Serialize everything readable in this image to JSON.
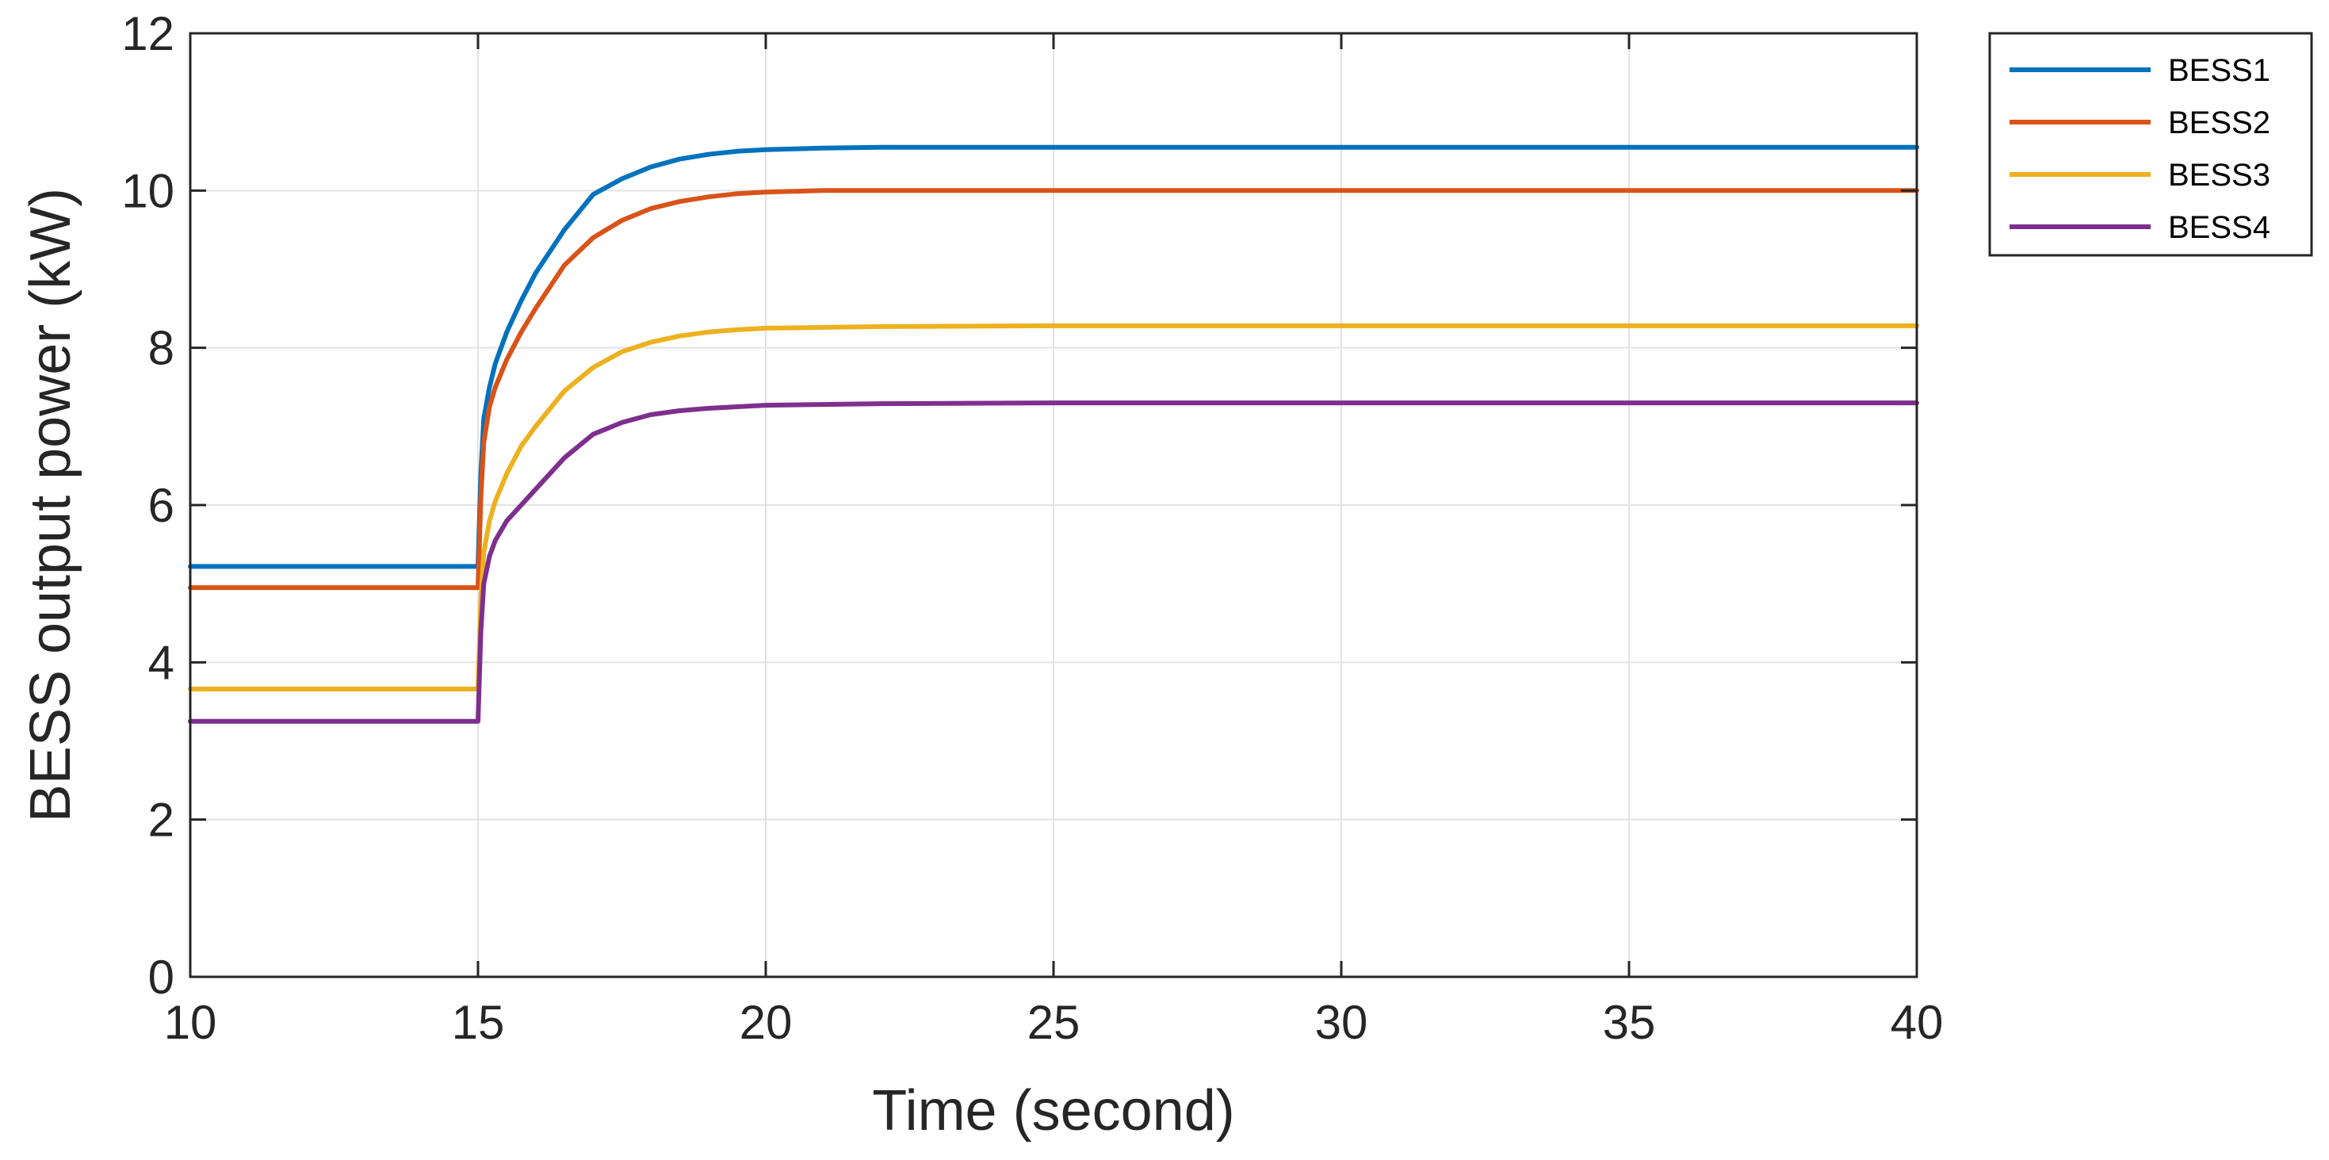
{
  "chart_data": {
    "type": "line",
    "title": "",
    "xlabel": "Time (second)",
    "ylabel": "BESS output power (kW)",
    "xlim": [
      10,
      40
    ],
    "ylim": [
      0,
      12
    ],
    "xticks": [
      10,
      15,
      20,
      25,
      30,
      35,
      40
    ],
    "yticks": [
      0,
      2,
      4,
      6,
      8,
      10,
      12
    ],
    "grid": true,
    "legend_position": "outside-top-right",
    "series": [
      {
        "name": "BESS1",
        "color": "#0072BD",
        "x": [
          10,
          14.98,
          15.0,
          15.05,
          15.1,
          15.2,
          15.3,
          15.5,
          15.75,
          16.0,
          16.5,
          17.0,
          17.5,
          18.0,
          18.5,
          19.0,
          19.5,
          20.0,
          21.0,
          22.0,
          25.0,
          30.0,
          35.0,
          40.0
        ],
        "y": [
          5.22,
          5.22,
          5.22,
          6.4,
          7.1,
          7.5,
          7.8,
          8.2,
          8.6,
          8.95,
          9.5,
          9.95,
          10.15,
          10.3,
          10.4,
          10.46,
          10.5,
          10.52,
          10.54,
          10.55,
          10.55,
          10.55,
          10.55,
          10.55
        ]
      },
      {
        "name": "BESS2",
        "color": "#D95319",
        "x": [
          10,
          14.98,
          15.0,
          15.05,
          15.1,
          15.2,
          15.3,
          15.5,
          15.75,
          16.0,
          16.5,
          17.0,
          17.5,
          18.0,
          18.5,
          19.0,
          19.5,
          20.0,
          21.0,
          22.0,
          25.0,
          30.0,
          35.0,
          40.0
        ],
        "y": [
          4.95,
          4.95,
          4.95,
          6.1,
          6.8,
          7.25,
          7.5,
          7.85,
          8.2,
          8.5,
          9.05,
          9.4,
          9.62,
          9.77,
          9.86,
          9.92,
          9.96,
          9.98,
          10.0,
          10.0,
          10.0,
          10.0,
          10.0,
          10.0
        ]
      },
      {
        "name": "BESS3",
        "color": "#EDB120",
        "x": [
          10,
          14.98,
          15.0,
          15.05,
          15.1,
          15.2,
          15.3,
          15.5,
          15.75,
          16.0,
          16.5,
          17.0,
          17.5,
          18.0,
          18.5,
          19.0,
          19.5,
          20.0,
          21.0,
          22.0,
          25.0,
          30.0,
          35.0,
          40.0
        ],
        "y": [
          3.66,
          3.66,
          3.66,
          4.8,
          5.4,
          5.8,
          6.05,
          6.4,
          6.75,
          7.0,
          7.45,
          7.75,
          7.95,
          8.07,
          8.15,
          8.2,
          8.23,
          8.25,
          8.26,
          8.27,
          8.28,
          8.28,
          8.28,
          8.28
        ]
      },
      {
        "name": "BESS4",
        "color": "#7E2F8E",
        "x": [
          10,
          14.98,
          15.0,
          15.05,
          15.1,
          15.2,
          15.3,
          15.5,
          15.75,
          16.0,
          16.5,
          17.0,
          17.5,
          18.0,
          18.5,
          19.0,
          19.5,
          20.0,
          21.0,
          22.0,
          25.0,
          30.0,
          35.0,
          40.0
        ],
        "y": [
          3.25,
          3.25,
          3.25,
          4.4,
          5.0,
          5.35,
          5.55,
          5.8,
          6.0,
          6.2,
          6.6,
          6.9,
          7.05,
          7.15,
          7.2,
          7.23,
          7.25,
          7.27,
          7.28,
          7.29,
          7.3,
          7.3,
          7.3,
          7.3
        ]
      }
    ]
  }
}
